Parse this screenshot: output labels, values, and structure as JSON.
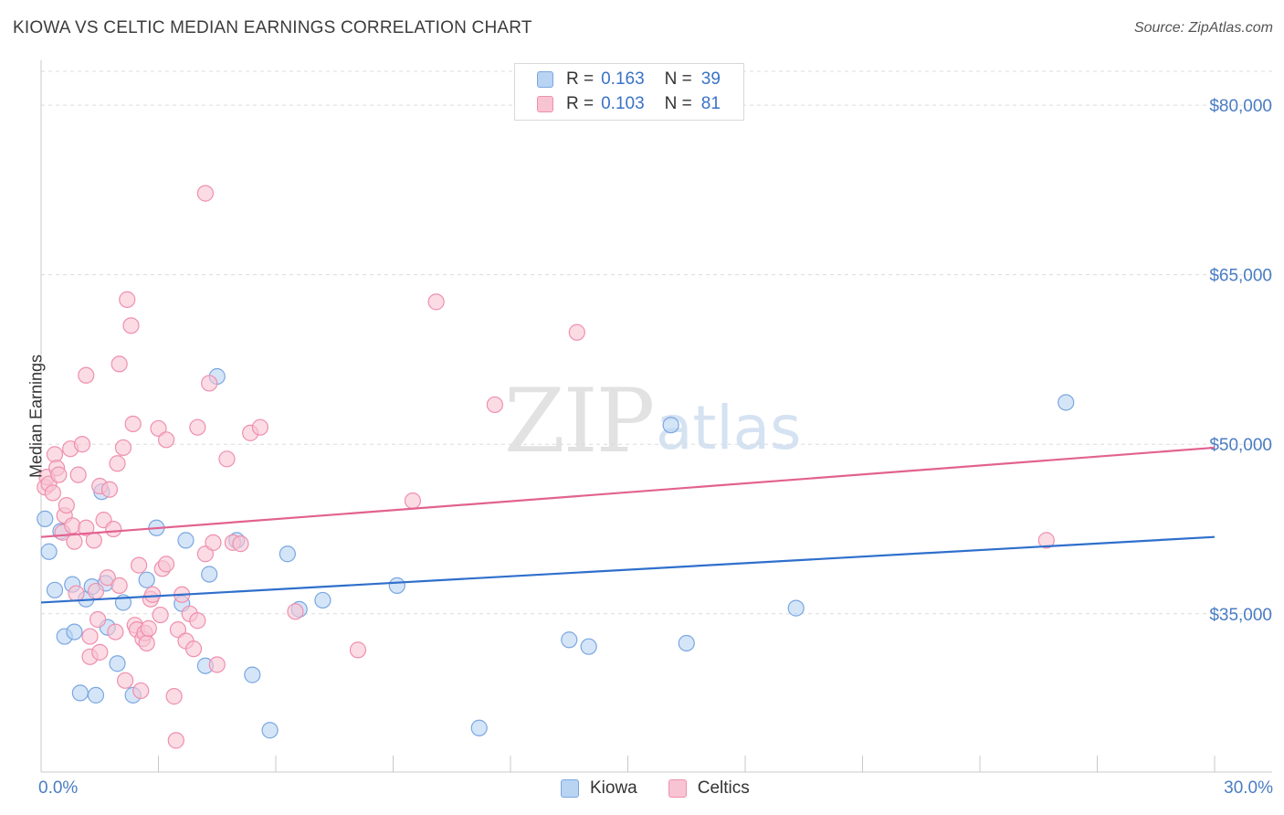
{
  "title": "KIOWA VS CELTIC MEDIAN EARNINGS CORRELATION CHART",
  "source": "Source: ZipAtlas.com",
  "watermark": {
    "zip": "ZIP",
    "atlas": "atlas"
  },
  "colors": {
    "kiowa_fill": "#b9d3f3",
    "kiowa_stroke": "#7aa7e0",
    "kiowa_line": "#2f6fcc",
    "celtics_fill": "#f8c4d4",
    "celtics_stroke": "#ef8fae",
    "celtics_line": "#e2628f",
    "tick_text": "#4a7cc4",
    "grid": "#dcdcdc"
  },
  "legend": {
    "kiowa": {
      "r_label": "R =",
      "r_value": "0.163",
      "n_label": "N =",
      "n_value": "39"
    },
    "celtics": {
      "r_label": "R =",
      "r_value": "0.103",
      "n_label": "N =",
      "n_value": "81"
    }
  },
  "bottom_legend": {
    "kiowa": "Kiowa",
    "celtics": "Celtics"
  },
  "chart_data": {
    "type": "scatter",
    "title": "KIOWA VS CELTIC MEDIAN EARNINGS CORRELATION CHART",
    "xlabel": "",
    "ylabel": "Median Earnings",
    "xlim": [
      0,
      30
    ],
    "ylim": [
      21000,
      83000
    ],
    "x_tick_labels": {
      "left": "0.0%",
      "right": "30.0%"
    },
    "y_ticks": [
      35000,
      50000,
      65000,
      80000
    ],
    "y_tick_labels": [
      "$35,000",
      "$50,000",
      "$65,000",
      "$80,000"
    ],
    "grid": true,
    "legend_position": "top-center",
    "series": [
      {
        "name": "Kiowa",
        "r": 0.163,
        "n": 39,
        "trend": {
          "x": [
            0,
            30
          ],
          "y": [
            36000,
            41800
          ]
        },
        "points": [
          {
            "x": 0.1,
            "y": 43400
          },
          {
            "x": 0.2,
            "y": 40500
          },
          {
            "x": 0.35,
            "y": 37100
          },
          {
            "x": 0.5,
            "y": 42300
          },
          {
            "x": 0.6,
            "y": 33000
          },
          {
            "x": 0.8,
            "y": 37600
          },
          {
            "x": 0.85,
            "y": 33400
          },
          {
            "x": 1.0,
            "y": 28000
          },
          {
            "x": 1.15,
            "y": 36300
          },
          {
            "x": 1.3,
            "y": 37400
          },
          {
            "x": 1.4,
            "y": 27800
          },
          {
            "x": 1.55,
            "y": 45800
          },
          {
            "x": 1.65,
            "y": 37700
          },
          {
            "x": 1.7,
            "y": 33800
          },
          {
            "x": 1.95,
            "y": 30600
          },
          {
            "x": 2.1,
            "y": 36000
          },
          {
            "x": 2.35,
            "y": 27800
          },
          {
            "x": 2.7,
            "y": 38000
          },
          {
            "x": 2.95,
            "y": 42600
          },
          {
            "x": 3.7,
            "y": 41500
          },
          {
            "x": 3.6,
            "y": 35900
          },
          {
            "x": 4.2,
            "y": 30400
          },
          {
            "x": 4.3,
            "y": 38500
          },
          {
            "x": 4.5,
            "y": 56000
          },
          {
            "x": 5.0,
            "y": 41500
          },
          {
            "x": 5.4,
            "y": 29600
          },
          {
            "x": 5.85,
            "y": 24700
          },
          {
            "x": 6.3,
            "y": 40300
          },
          {
            "x": 6.6,
            "y": 35400
          },
          {
            "x": 7.2,
            "y": 36200
          },
          {
            "x": 9.1,
            "y": 37500
          },
          {
            "x": 11.2,
            "y": 24900
          },
          {
            "x": 13.5,
            "y": 32700
          },
          {
            "x": 14.0,
            "y": 32100
          },
          {
            "x": 16.1,
            "y": 51700
          },
          {
            "x": 16.5,
            "y": 32400
          },
          {
            "x": 19.3,
            "y": 35500
          },
          {
            "x": 26.2,
            "y": 53700
          }
        ]
      },
      {
        "name": "Celtics",
        "r": 0.103,
        "n": 81,
        "trend": {
          "x": [
            0,
            30
          ],
          "y": [
            41800,
            49700
          ]
        },
        "points": [
          {
            "x": 0.1,
            "y": 46200
          },
          {
            "x": 0.15,
            "y": 47100
          },
          {
            "x": 0.2,
            "y": 46500
          },
          {
            "x": 0.3,
            "y": 45700
          },
          {
            "x": 0.35,
            "y": 49100
          },
          {
            "x": 0.4,
            "y": 47900
          },
          {
            "x": 0.45,
            "y": 47300
          },
          {
            "x": 0.55,
            "y": 42200
          },
          {
            "x": 0.6,
            "y": 43700
          },
          {
            "x": 0.65,
            "y": 44600
          },
          {
            "x": 0.75,
            "y": 49600
          },
          {
            "x": 0.8,
            "y": 42800
          },
          {
            "x": 0.85,
            "y": 41400
          },
          {
            "x": 0.9,
            "y": 36800
          },
          {
            "x": 0.95,
            "y": 47300
          },
          {
            "x": 1.05,
            "y": 50000
          },
          {
            "x": 1.15,
            "y": 42600
          },
          {
            "x": 1.15,
            "y": 56100
          },
          {
            "x": 1.25,
            "y": 31200
          },
          {
            "x": 1.25,
            "y": 33000
          },
          {
            "x": 1.35,
            "y": 41500
          },
          {
            "x": 1.4,
            "y": 37000
          },
          {
            "x": 1.45,
            "y": 34500
          },
          {
            "x": 1.5,
            "y": 31600
          },
          {
            "x": 1.5,
            "y": 46300
          },
          {
            "x": 1.6,
            "y": 43300
          },
          {
            "x": 1.7,
            "y": 38200
          },
          {
            "x": 1.75,
            "y": 46000
          },
          {
            "x": 1.85,
            "y": 42500
          },
          {
            "x": 1.9,
            "y": 33400
          },
          {
            "x": 1.95,
            "y": 48300
          },
          {
            "x": 2.0,
            "y": 37500
          },
          {
            "x": 2.0,
            "y": 57100
          },
          {
            "x": 2.1,
            "y": 49700
          },
          {
            "x": 2.15,
            "y": 29100
          },
          {
            "x": 2.2,
            "y": 62800
          },
          {
            "x": 2.3,
            "y": 60500
          },
          {
            "x": 2.35,
            "y": 51800
          },
          {
            "x": 2.4,
            "y": 34000
          },
          {
            "x": 2.45,
            "y": 33600
          },
          {
            "x": 2.5,
            "y": 39300
          },
          {
            "x": 2.55,
            "y": 28200
          },
          {
            "x": 2.6,
            "y": 32800
          },
          {
            "x": 2.65,
            "y": 33300
          },
          {
            "x": 2.7,
            "y": 32400
          },
          {
            "x": 2.75,
            "y": 33700
          },
          {
            "x": 2.8,
            "y": 36300
          },
          {
            "x": 2.85,
            "y": 36700
          },
          {
            "x": 3.0,
            "y": 51400
          },
          {
            "x": 3.05,
            "y": 34900
          },
          {
            "x": 3.1,
            "y": 39000
          },
          {
            "x": 3.2,
            "y": 39400
          },
          {
            "x": 3.2,
            "y": 50400
          },
          {
            "x": 3.4,
            "y": 27700
          },
          {
            "x": 3.45,
            "y": 23800
          },
          {
            "x": 3.5,
            "y": 33600
          },
          {
            "x": 3.6,
            "y": 36700
          },
          {
            "x": 3.7,
            "y": 32600
          },
          {
            "x": 3.8,
            "y": 35000
          },
          {
            "x": 3.9,
            "y": 31900
          },
          {
            "x": 4.0,
            "y": 34400
          },
          {
            "x": 4.0,
            "y": 51500
          },
          {
            "x": 4.2,
            "y": 40300
          },
          {
            "x": 4.2,
            "y": 72200
          },
          {
            "x": 4.3,
            "y": 55400
          },
          {
            "x": 4.4,
            "y": 41300
          },
          {
            "x": 4.5,
            "y": 30500
          },
          {
            "x": 4.75,
            "y": 48700
          },
          {
            "x": 4.9,
            "y": 41300
          },
          {
            "x": 5.1,
            "y": 41200
          },
          {
            "x": 5.35,
            "y": 51000
          },
          {
            "x": 5.6,
            "y": 51500
          },
          {
            "x": 6.5,
            "y": 35200
          },
          {
            "x": 8.1,
            "y": 31800
          },
          {
            "x": 9.5,
            "y": 45000
          },
          {
            "x": 10.1,
            "y": 62600
          },
          {
            "x": 11.6,
            "y": 53500
          },
          {
            "x": 13.7,
            "y": 59900
          },
          {
            "x": 25.7,
            "y": 41500
          }
        ]
      }
    ]
  }
}
